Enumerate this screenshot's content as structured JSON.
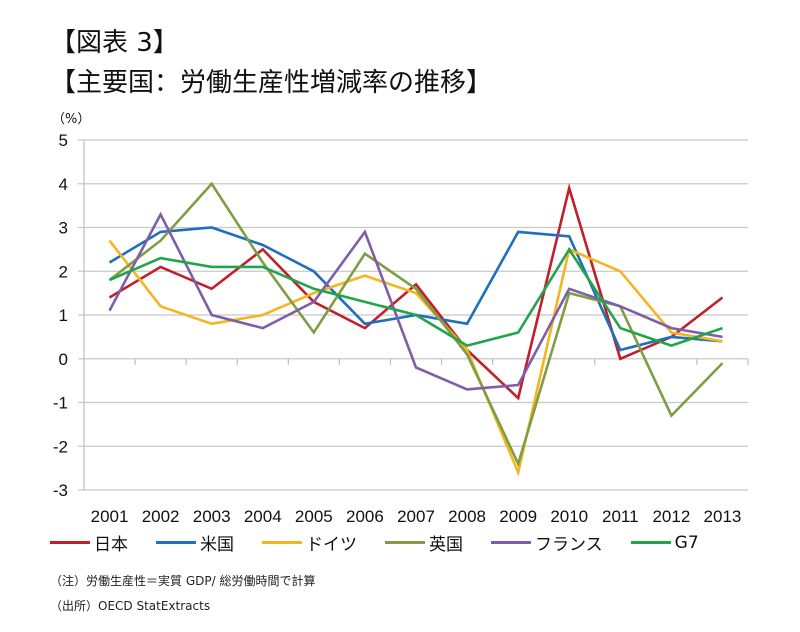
{
  "header": {
    "figure_label": "【図表 3】",
    "title": "【主要国：労働生産性増減率の推移】",
    "unit": "（%）"
  },
  "chart_data": {
    "type": "line",
    "title": "【主要国：労働生産性増減率の推移】",
    "xlabel": "",
    "ylabel": "（%）",
    "ylim": [
      -3,
      5
    ],
    "yticks": [
      "5",
      "4",
      "3",
      "2",
      "1",
      "0",
      "-1",
      "-2",
      "-3"
    ],
    "ytick_values": [
      5,
      4,
      3,
      2,
      1,
      0,
      -1,
      -2,
      -3
    ],
    "grid": true,
    "legend_position": "bottom",
    "categories": [
      "2001",
      "2002",
      "2003",
      "2004",
      "2005",
      "2006",
      "2007",
      "2008",
      "2009",
      "2010",
      "2011",
      "2012",
      "2013"
    ],
    "series": [
      {
        "name": "日本",
        "color": "#C0202A",
        "values": [
          1.4,
          2.1,
          1.6,
          2.5,
          1.3,
          0.7,
          1.7,
          0.2,
          -0.9,
          3.9,
          0.0,
          0.5,
          1.4
        ]
      },
      {
        "name": "米国",
        "color": "#1F6FBF",
        "values": [
          2.2,
          2.9,
          3.0,
          2.6,
          2.0,
          0.8,
          1.0,
          0.8,
          2.9,
          2.8,
          0.2,
          0.5,
          0.4
        ]
      },
      {
        "name": "ドイツ",
        "color": "#F6B51E",
        "values": [
          2.7,
          1.2,
          0.8,
          1.0,
          1.5,
          1.9,
          1.5,
          0.2,
          -2.6,
          2.5,
          2.0,
          0.6,
          0.4
        ]
      },
      {
        "name": "英国",
        "color": "#7F9E43",
        "values": [
          1.8,
          2.7,
          4.0,
          2.2,
          0.6,
          2.4,
          1.6,
          0.1,
          -2.4,
          1.5,
          1.2,
          -1.3,
          -0.1
        ]
      },
      {
        "name": "フランス",
        "color": "#7E5EA8",
        "values": [
          1.1,
          3.3,
          1.0,
          0.7,
          1.3,
          2.9,
          -0.2,
          -0.7,
          -0.6,
          1.6,
          1.2,
          0.7,
          0.5
        ]
      },
      {
        "name": "G7",
        "color": "#1FA64A",
        "values": [
          1.8,
          2.3,
          2.1,
          2.1,
          1.6,
          1.3,
          1.0,
          0.3,
          0.6,
          2.5,
          0.7,
          0.3,
          0.7
        ]
      }
    ]
  },
  "notes": {
    "note": "（注）労働生産性＝実質 GDP/ 総労働時間で計算",
    "source": "（出所）OECD StatExtracts"
  }
}
